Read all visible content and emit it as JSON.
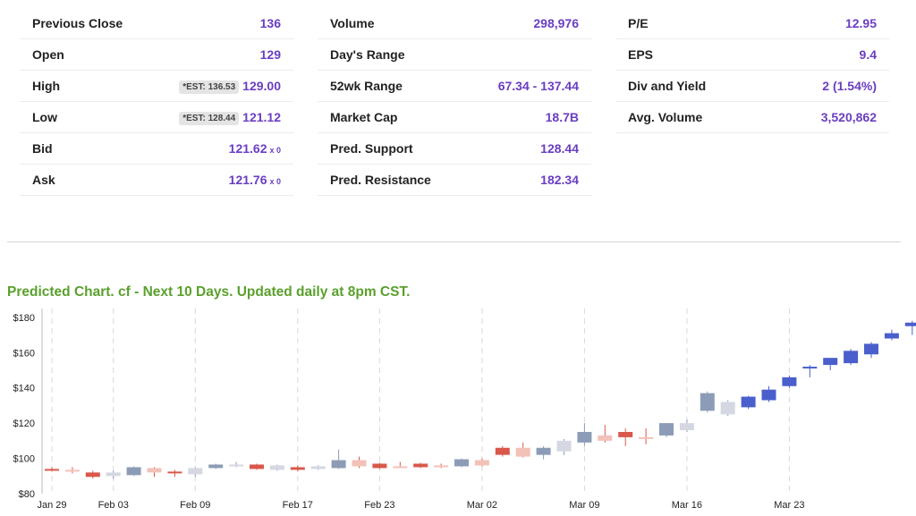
{
  "stats": {
    "col1": [
      {
        "label": "Previous Close",
        "value": "136"
      },
      {
        "label": "Open",
        "value": "129"
      },
      {
        "label": "High",
        "value": "129.00",
        "est": "*EST: 136.53"
      },
      {
        "label": "Low",
        "value": "121.12",
        "est": "*EST: 128.44"
      },
      {
        "label": "Bid",
        "value": "121.62",
        "sub": "x 0"
      },
      {
        "label": "Ask",
        "value": "121.76",
        "sub": "x 0"
      }
    ],
    "col2": [
      {
        "label": "Volume",
        "value": "298,976"
      },
      {
        "label": "Day's Range",
        "value": ""
      },
      {
        "label": "52wk Range",
        "value": "67.34 - 137.44"
      },
      {
        "label": "Market Cap",
        "value": "18.7B"
      },
      {
        "label": "Pred. Support",
        "value": "128.44"
      },
      {
        "label": "Pred. Resistance",
        "value": "182.34"
      }
    ],
    "col3": [
      {
        "label": "P/E",
        "value": "12.95"
      },
      {
        "label": "EPS",
        "value": "9.4"
      },
      {
        "label": "Div and Yield",
        "value": "2 (1.54%)"
      },
      {
        "label": "Avg. Volume",
        "value": "3,520,862"
      }
    ]
  },
  "chart_title": "Predicted Chart. cf - Next 10 Days. Updated daily at 8pm CST.",
  "colors": {
    "up_dark": "#8c9cb6",
    "up_light": "#d5d8e2",
    "down_dark": "#d9584b",
    "down_light": "#f2c1b8",
    "pred": "#4a5fcb",
    "value": "#6a3ec2",
    "title": "#5aa02c"
  },
  "chart_data": {
    "type": "candlestick",
    "ylim": [
      80,
      185
    ],
    "yticks": [
      {
        "v": 80,
        "label": "$80"
      },
      {
        "v": 100,
        "label": "$100"
      },
      {
        "v": 120,
        "label": "$120"
      },
      {
        "v": 140,
        "label": "$140"
      },
      {
        "v": 160,
        "label": "$160"
      },
      {
        "v": 180,
        "label": "$180"
      }
    ],
    "xticks": [
      "Jan 29",
      "Feb 03",
      "Feb 09",
      "Feb 17",
      "Feb 23",
      "Mar 02",
      "Mar 09",
      "Mar 16",
      "Mar 23"
    ],
    "xtick_index": [
      0,
      3,
      7,
      12,
      16,
      21,
      26,
      31,
      36
    ],
    "candles": [
      {
        "o": 94,
        "c": 93.5,
        "h": 95,
        "l": 92.5,
        "s": "dn"
      },
      {
        "o": 93.5,
        "c": 93,
        "h": 95,
        "l": 91.5,
        "s": "dn"
      },
      {
        "o": 92,
        "c": 89.5,
        "h": 93,
        "l": 88.5,
        "s": "dn"
      },
      {
        "o": 90,
        "c": 92,
        "h": 93,
        "l": 88.5,
        "s": "up"
      },
      {
        "o": 90.5,
        "c": 95,
        "h": 95.5,
        "l": 90,
        "s": "up"
      },
      {
        "o": 94.5,
        "c": 92,
        "h": 95,
        "l": 89.5,
        "s": "dn"
      },
      {
        "o": 92.5,
        "c": 91.5,
        "h": 93.5,
        "l": 89.5,
        "s": "dn"
      },
      {
        "o": 91,
        "c": 94.5,
        "h": 95,
        "l": 89.5,
        "s": "up"
      },
      {
        "o": 94.5,
        "c": 96.5,
        "h": 97,
        "l": 94,
        "s": "up"
      },
      {
        "o": 95.5,
        "c": 96.5,
        "h": 98,
        "l": 95,
        "s": "up"
      },
      {
        "o": 96.5,
        "c": 94,
        "h": 97,
        "l": 93.5,
        "s": "dn"
      },
      {
        "o": 96,
        "c": 93.5,
        "h": 96.5,
        "l": 93,
        "s": "up"
      },
      {
        "o": 95,
        "c": 93.5,
        "h": 96,
        "l": 92.5,
        "s": "dn"
      },
      {
        "o": 94,
        "c": 95.5,
        "h": 96,
        "l": 93.5,
        "s": "up"
      },
      {
        "o": 94.5,
        "c": 99,
        "h": 105,
        "l": 94,
        "s": "up"
      },
      {
        "o": 99,
        "c": 95.5,
        "h": 101,
        "l": 94.5,
        "s": "dn"
      },
      {
        "o": 97,
        "c": 94.5,
        "h": 97.5,
        "l": 94,
        "s": "dn"
      },
      {
        "o": 95.5,
        "c": 95.5,
        "h": 98,
        "l": 94.5,
        "s": "dn"
      },
      {
        "o": 97,
        "c": 95,
        "h": 97.5,
        "l": 94.5,
        "s": "dn"
      },
      {
        "o": 96,
        "c": 95,
        "h": 97,
        "l": 94.5,
        "s": "dn"
      },
      {
        "o": 95.5,
        "c": 99.5,
        "h": 100,
        "l": 95,
        "s": "up"
      },
      {
        "o": 99,
        "c": 96,
        "h": 100,
        "l": 95.5,
        "s": "dn"
      },
      {
        "o": 102,
        "c": 106,
        "h": 107,
        "l": 101,
        "s": "dn"
      },
      {
        "o": 101,
        "c": 106,
        "h": 109,
        "l": 100.5,
        "s": "dn"
      },
      {
        "o": 102,
        "c": 106,
        "h": 107,
        "l": 99.5,
        "s": "up"
      },
      {
        "o": 104,
        "c": 110,
        "h": 111,
        "l": 102,
        "s": "up"
      },
      {
        "o": 109,
        "c": 115,
        "h": 120,
        "l": 107,
        "s": "up"
      },
      {
        "o": 113,
        "c": 110,
        "h": 119,
        "l": 109,
        "s": "dn"
      },
      {
        "o": 112,
        "c": 115,
        "h": 117,
        "l": 107,
        "s": "dn"
      },
      {
        "o": 111,
        "c": 112,
        "h": 117,
        "l": 108,
        "s": "dn"
      },
      {
        "o": 113,
        "c": 120,
        "h": 120,
        "l": 112,
        "s": "up"
      },
      {
        "o": 116,
        "c": 120,
        "h": 122,
        "l": 115,
        "s": "up"
      },
      {
        "o": 127,
        "c": 137,
        "h": 138,
        "l": 126,
        "s": "up"
      },
      {
        "o": 125,
        "c": 132,
        "h": 133,
        "l": 124,
        "s": "up"
      },
      {
        "o": 129,
        "c": 135,
        "h": 135.5,
        "l": 128,
        "s": "pred"
      },
      {
        "o": 133,
        "c": 139,
        "h": 141,
        "l": 132,
        "s": "pred"
      },
      {
        "o": 141,
        "c": 146,
        "h": 147,
        "l": 140,
        "s": "pred"
      },
      {
        "o": 151,
        "c": 152,
        "h": 153,
        "l": 146,
        "s": "pred"
      },
      {
        "o": 153,
        "c": 157,
        "h": 157,
        "l": 150,
        "s": "pred"
      },
      {
        "o": 154,
        "c": 161,
        "h": 162,
        "l": 153,
        "s": "pred"
      },
      {
        "o": 159,
        "c": 165,
        "h": 166,
        "l": 157,
        "s": "pred"
      },
      {
        "o": 168,
        "c": 171,
        "h": 173,
        "l": 167,
        "s": "pred"
      },
      {
        "o": 175,
        "c": 177,
        "h": 178,
        "l": 170,
        "s": "pred"
      },
      {
        "o": 178,
        "c": 181,
        "h": 183,
        "l": 175,
        "s": "pred"
      }
    ]
  }
}
